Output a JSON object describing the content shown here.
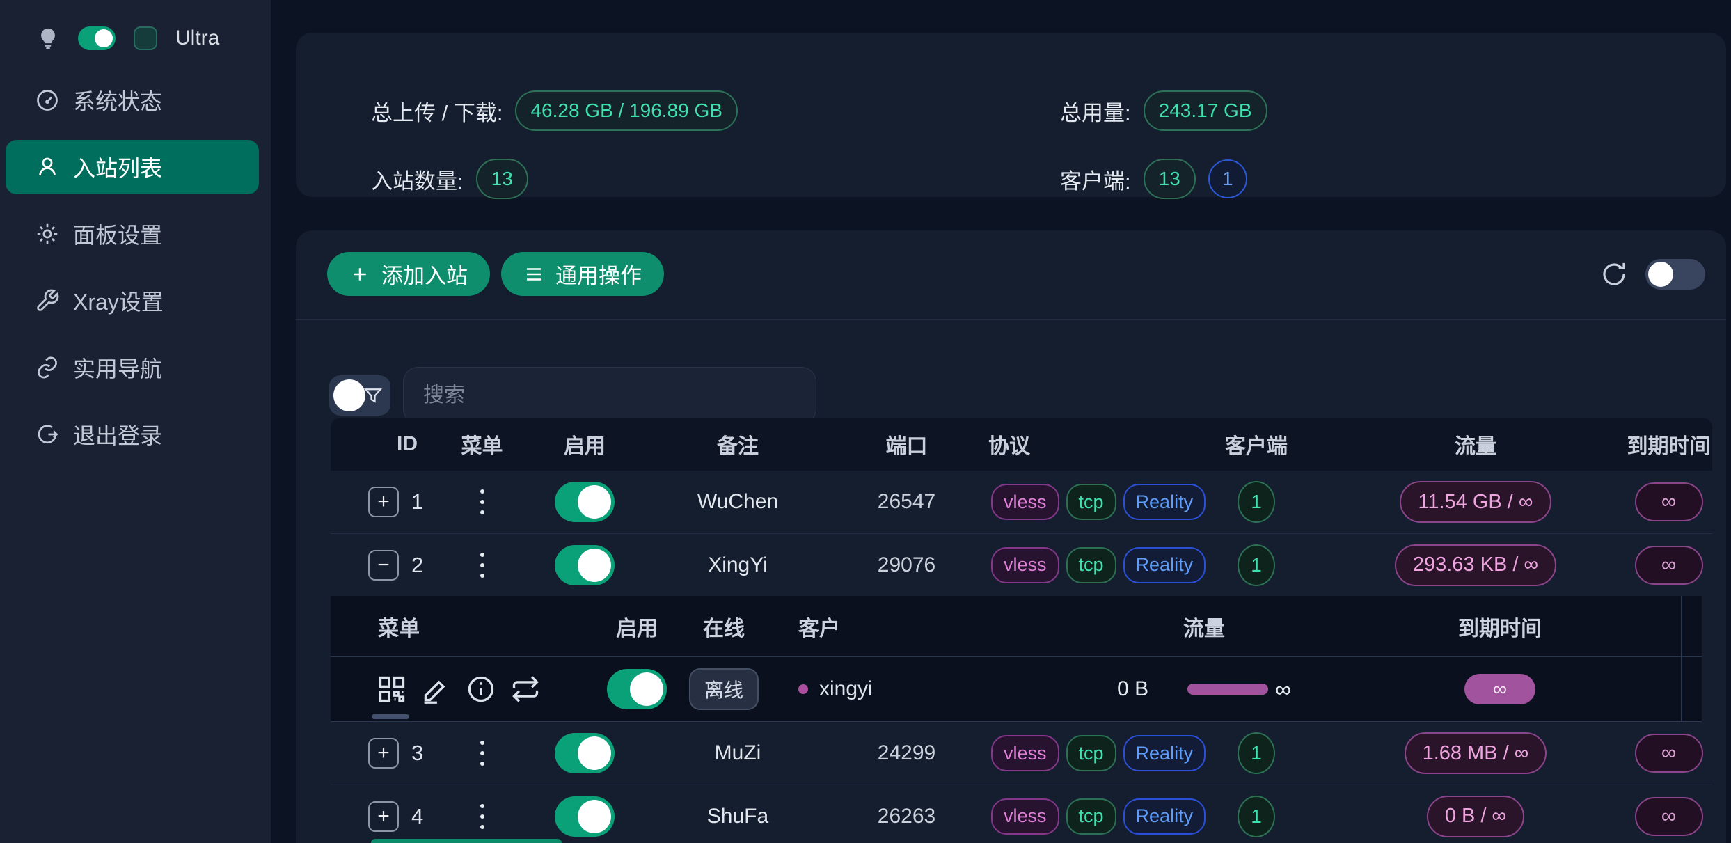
{
  "colors": {
    "accent_button_green": "#0e8e6d",
    "active_menu_teal": "#006e5d",
    "toggle_on": "#0aa078",
    "badge_green_text": "#41dfae",
    "badge_blue_text": "#5f9df8",
    "badge_magenta_text": "#df7fd6",
    "traffic_pink_text": "#eda4df",
    "purple_solid": "#a2539e"
  },
  "icons": {
    "expand_collapsed": "+",
    "expand_expanded": "−"
  },
  "sidebar": {
    "ultra_label": "Ultra",
    "items": [
      {
        "label": "系统状态",
        "active": false
      },
      {
        "label": "入站列表",
        "active": true
      },
      {
        "label": "面板设置",
        "active": false
      },
      {
        "label": "Xray设置",
        "active": false
      },
      {
        "label": "实用导航",
        "active": false
      },
      {
        "label": "退出登录",
        "active": false
      }
    ]
  },
  "stats": {
    "upload_download_label": "总上传 / 下载:",
    "upload_download_value": "46.28 GB / 196.89 GB",
    "total_usage_label": "总用量:",
    "total_usage_value": "243.17 GB",
    "inbound_count_label": "入站数量:",
    "inbound_count_value": "13",
    "clients_label": "客户端:",
    "clients_value": "13",
    "clients_online_value": "1"
  },
  "toolbar": {
    "add_inbound_label": "添加入站",
    "general_actions_label": "通用操作"
  },
  "search": {
    "placeholder": "搜索"
  },
  "table": {
    "headers": [
      "ID",
      "菜单",
      "启用",
      "备注",
      "端口",
      "协议",
      "客户端",
      "流量",
      "到期时间"
    ],
    "rows": [
      {
        "id": "1",
        "expanded": false,
        "enabled": true,
        "remark": "WuChen",
        "port": "26547",
        "protocols": [
          {
            "label": "vless",
            "color": "magenta"
          },
          {
            "label": "tcp",
            "color": "green"
          },
          {
            "label": "Reality",
            "color": "blue"
          }
        ],
        "clients": "1",
        "traffic": "11.54 GB / ∞",
        "expiry": "∞"
      },
      {
        "id": "2",
        "expanded": true,
        "enabled": true,
        "remark": "XingYi",
        "port": "29076",
        "protocols": [
          {
            "label": "vless",
            "color": "magenta"
          },
          {
            "label": "tcp",
            "color": "green"
          },
          {
            "label": "Reality",
            "color": "blue"
          }
        ],
        "clients": "1",
        "traffic": "293.63 KB / ∞",
        "expiry": "∞"
      },
      {
        "id": "3",
        "expanded": false,
        "enabled": true,
        "remark": "MuZi",
        "port": "24299",
        "protocols": [
          {
            "label": "vless",
            "color": "magenta"
          },
          {
            "label": "tcp",
            "color": "green"
          },
          {
            "label": "Reality",
            "color": "blue"
          }
        ],
        "clients": "1",
        "traffic": "1.68 MB / ∞",
        "expiry": "∞"
      },
      {
        "id": "4",
        "expanded": false,
        "enabled": true,
        "remark": "ShuFa",
        "port": "26263",
        "protocols": [
          {
            "label": "vless",
            "color": "magenta"
          },
          {
            "label": "tcp",
            "color": "green"
          },
          {
            "label": "Reality",
            "color": "blue"
          }
        ],
        "clients": "1",
        "traffic": "0 B / ∞",
        "expiry": "∞"
      }
    ]
  },
  "subtable": {
    "headers": [
      "菜单",
      "启用",
      "在线",
      "客户",
      "流量",
      "到期时间"
    ],
    "row": {
      "enabled": true,
      "online_status": "离线",
      "client_name": "xingyi",
      "traffic_used": "0 B",
      "traffic_cap": "∞",
      "expiry": "∞"
    }
  }
}
